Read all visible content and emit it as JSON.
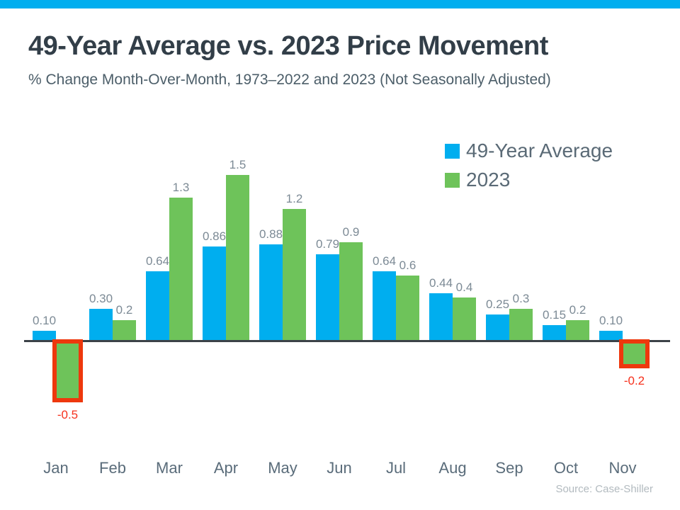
{
  "page": {
    "top_strip_color": "#00AEEF",
    "background_color": "#FFFFFF"
  },
  "header": {
    "title": "49-Year Average vs. 2023 Price Movement",
    "subtitle": "% Change Month-Over-Month, 1973–2022 and 2023 (Not Seasonally Adjusted)"
  },
  "legend": {
    "position": "top-right",
    "items": [
      {
        "label": "49-Year Average",
        "color": "#00AEEF"
      },
      {
        "label": "2023",
        "color": "#6EC35A"
      }
    ]
  },
  "footer": {
    "source": "Source: Case-Shiller"
  },
  "chart_data": {
    "type": "bar",
    "title": "49-Year Average vs. 2023 Price Movement",
    "subtitle": "% Change Month-Over-Month, 1973–2022 and 2023 (Not Seasonally Adjusted)",
    "xlabel": "",
    "ylabel": "% Change Month-Over-Month",
    "ylim": [
      -0.6,
      1.6
    ],
    "grid": false,
    "legend_position": "top-right",
    "categories": [
      "Jan",
      "Feb",
      "Mar",
      "Apr",
      "May",
      "Jun",
      "Jul",
      "Aug",
      "Sep",
      "Oct",
      "Nov"
    ],
    "series": [
      {
        "name": "49-Year Average",
        "color": "#00AEEF",
        "values": [
          0.1,
          0.3,
          0.64,
          0.86,
          0.88,
          0.79,
          0.64,
          0.44,
          0.25,
          0.15,
          0.1
        ],
        "labels": [
          "0.10",
          "0.30",
          "0.64",
          "0.86",
          "0.88",
          "0.79",
          "0.64",
          "0.44",
          "0.25",
          "0.15",
          "0.10"
        ]
      },
      {
        "name": "2023",
        "color": "#6EC35A",
        "values": [
          -0.5,
          0.2,
          1.3,
          1.5,
          1.2,
          0.9,
          0.6,
          0.4,
          0.3,
          0.2,
          -0.2
        ],
        "labels": [
          "-0.5",
          "0.2",
          "1.3",
          "1.5",
          "1.2",
          "0.9",
          "0.6",
          "0.4",
          "0.3",
          "0.2",
          "-0.2"
        ]
      }
    ],
    "annotations": {
      "negative_highlight_box_color": "#EE380D",
      "negative_label_color": "#F6311D",
      "highlighted_points": [
        "Jan 2023: -0.5",
        "Nov 2023: -0.2"
      ]
    },
    "source": "Source: Case-Shiller"
  }
}
